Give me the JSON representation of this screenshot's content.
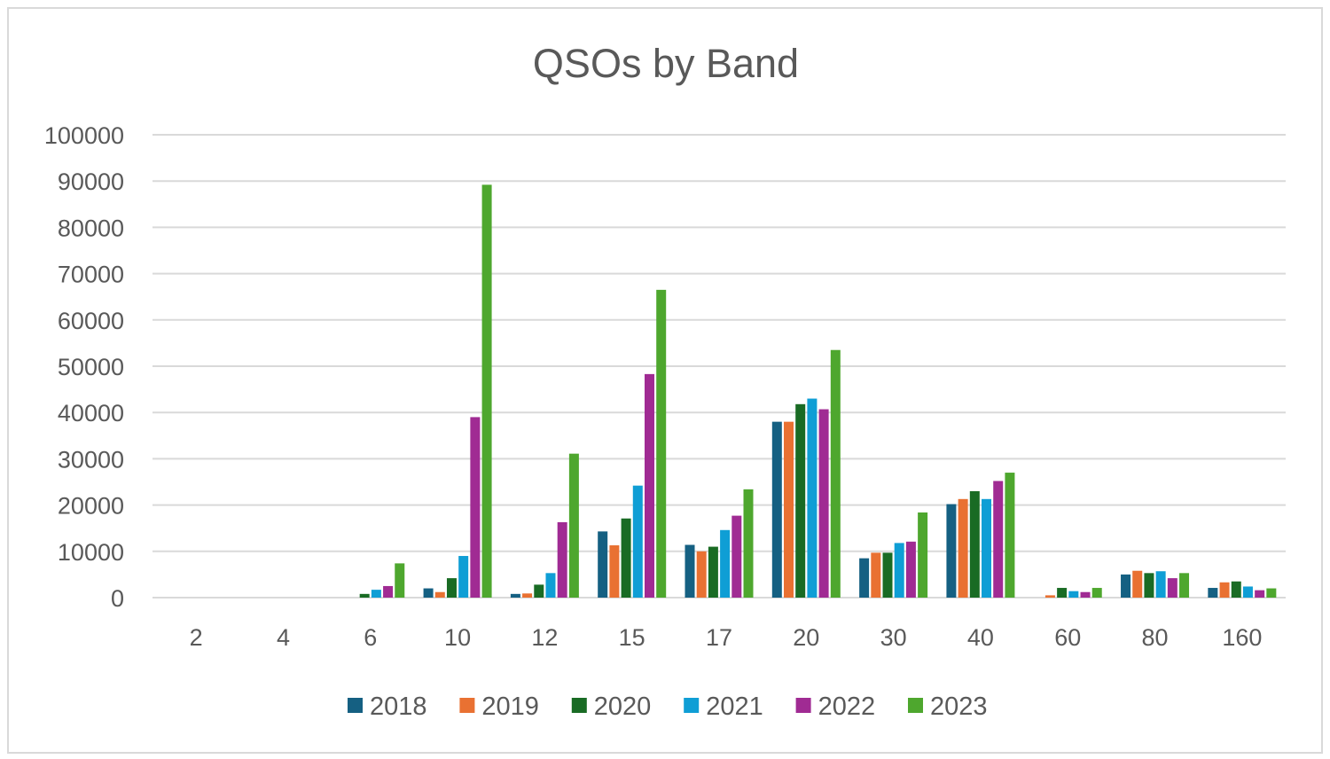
{
  "chart_data": {
    "type": "bar",
    "title": "QSOs by Band",
    "xlabel": "",
    "ylabel": "",
    "ylim": [
      0,
      100000
    ],
    "yticks": [
      0,
      10000,
      20000,
      30000,
      40000,
      50000,
      60000,
      70000,
      80000,
      90000,
      100000
    ],
    "categories": [
      "2",
      "4",
      "6",
      "10",
      "12",
      "15",
      "17",
      "20",
      "30",
      "40",
      "60",
      "80",
      "160"
    ],
    "grid": true,
    "legend_position": "bottom",
    "series": [
      {
        "name": "2018",
        "color": "#156082",
        "values": [
          0,
          0,
          0,
          2000,
          800,
          14300,
          11400,
          38000,
          8500,
          20200,
          0,
          5000,
          2100
        ]
      },
      {
        "name": "2019",
        "color": "#e97132",
        "values": [
          0,
          0,
          0,
          1200,
          900,
          11300,
          10000,
          38000,
          9700,
          21300,
          500,
          5800,
          3300
        ]
      },
      {
        "name": "2020",
        "color": "#196b24",
        "values": [
          0,
          0,
          800,
          4200,
          2800,
          17100,
          11000,
          41800,
          9700,
          23000,
          2100,
          5300,
          3500
        ]
      },
      {
        "name": "2021",
        "color": "#0f9ed5",
        "values": [
          0,
          0,
          1700,
          9000,
          5300,
          24200,
          14600,
          43000,
          11800,
          21300,
          1400,
          5700,
          2400
        ]
      },
      {
        "name": "2022",
        "color": "#a02b93",
        "values": [
          0,
          0,
          2500,
          39000,
          16300,
          48300,
          17700,
          40700,
          12100,
          25200,
          1200,
          4200,
          1600
        ]
      },
      {
        "name": "2023",
        "color": "#4ea72e",
        "values": [
          0,
          0,
          7400,
          89200,
          31100,
          66500,
          23400,
          53500,
          18400,
          27000,
          2100,
          5300,
          2000
        ]
      }
    ]
  }
}
